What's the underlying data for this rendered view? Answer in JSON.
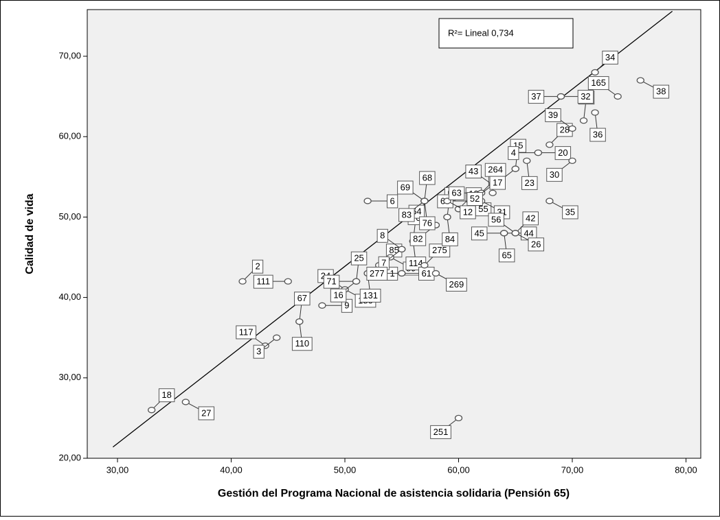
{
  "chart_data": {
    "type": "scatter",
    "xlabel": "Gestión del Programa Nacional de asistencia solidaria (Pensión 65)",
    "ylabel": "Calidad de vida",
    "annotation": "R²= Lineal 0,734",
    "xlim": [
      27.34,
      81.3
    ],
    "ylim": [
      20,
      75.8
    ],
    "xticks": [
      {
        "value": 30,
        "label": "30,00"
      },
      {
        "value": 40,
        "label": "40,00"
      },
      {
        "value": 50,
        "label": "50,00"
      },
      {
        "value": 60,
        "label": "60,00"
      },
      {
        "value": 70,
        "label": "70,00"
      },
      {
        "value": 80,
        "label": "80,00"
      }
    ],
    "yticks": [
      {
        "value": 20,
        "label": "20,00"
      },
      {
        "value": 30,
        "label": "30,00"
      },
      {
        "value": 40,
        "label": "40,00"
      },
      {
        "value": 50,
        "label": "50,00"
      },
      {
        "value": 60,
        "label": "60,00"
      },
      {
        "value": 70,
        "label": "70,00"
      }
    ],
    "color": "#555555",
    "fit_line": {
      "x": [
        29.6,
        78.8
      ],
      "y": [
        21.4,
        75.6
      ],
      "color": "#000000"
    },
    "series": [
      {
        "labels": [
          "18",
          "27",
          "117",
          "3",
          "67",
          "110",
          "9",
          "111",
          "2",
          "180",
          "24",
          "16",
          "25",
          "131",
          "1",
          "71",
          "85",
          "89",
          "8",
          "7",
          "70",
          "114",
          "61",
          "277",
          "275",
          "269",
          "64",
          "82",
          "5",
          "84",
          "55",
          "60",
          "13",
          "12",
          "69",
          "83",
          "68",
          "76",
          "6",
          "63",
          "99",
          "31",
          "43",
          "52",
          "264",
          "65",
          "44",
          "45",
          "42",
          "26",
          "56",
          "17",
          "15",
          "23",
          "20",
          "4",
          "28",
          "35",
          "39",
          "30",
          "33",
          "36",
          "32",
          "37",
          "34",
          "38",
          "165",
          "251"
        ],
        "x": [
          33,
          36,
          43,
          44,
          46,
          46,
          48,
          45,
          41,
          50,
          50,
          51,
          51,
          52,
          52,
          51,
          53,
          54,
          55,
          55,
          56,
          56,
          55,
          55,
          57,
          58,
          58,
          58,
          59,
          59,
          60,
          61,
          60,
          59,
          57,
          57,
          57,
          57,
          52,
          62,
          62,
          62,
          63,
          63,
          63,
          64,
          64,
          64,
          65,
          65,
          65,
          65,
          65,
          66,
          67,
          67,
          68,
          68,
          70,
          70,
          71,
          72,
          69,
          69,
          72,
          76,
          74,
          60
        ],
        "values": [
          26,
          27,
          34,
          35,
          37,
          37,
          39,
          42,
          42,
          41,
          41,
          42,
          42,
          43,
          43,
          42,
          44,
          45,
          46,
          46,
          47,
          47,
          43,
          43,
          44,
          43,
          49,
          49,
          50,
          50,
          51,
          52,
          51,
          52,
          52,
          52,
          52,
          52,
          52,
          53,
          53,
          52,
          54,
          54,
          53,
          48,
          48,
          48,
          48,
          48,
          48,
          56,
          56,
          57,
          58,
          58,
          59,
          52,
          61,
          57,
          62,
          63,
          65,
          65,
          68,
          67,
          65,
          25
        ]
      }
    ]
  }
}
